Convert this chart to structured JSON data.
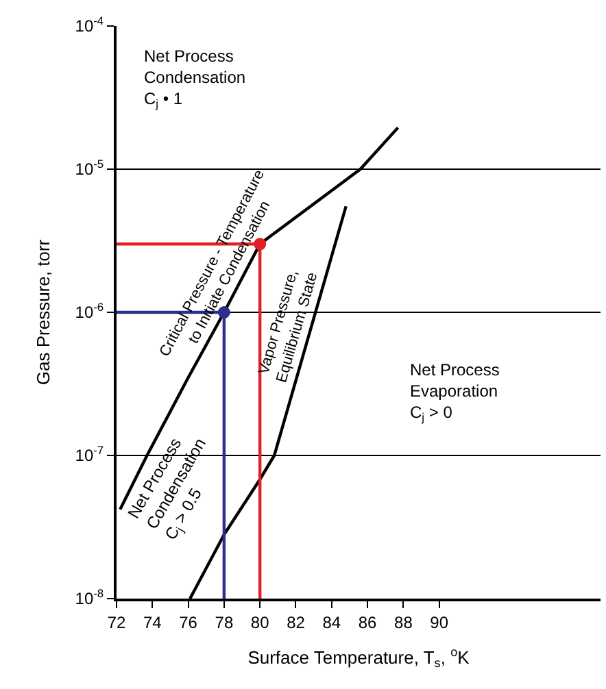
{
  "chart_data": {
    "type": "line",
    "xlabel": "Surface Temperature, T$_{s}$, $^{o}$K",
    "ylabel": "Gas Pressure, torr",
    "log": "y",
    "grid": "y",
    "legend": false,
    "marker": "none",
    "line_style": "solid",
    "xlim": [
      72,
      99
    ],
    "xticks": [
      72,
      74,
      76,
      78,
      80,
      82,
      84,
      86,
      88,
      90
    ],
    "ylim": [
      1e-08,
      0.0001
    ],
    "yticks": [
      {
        "value": 1e-08,
        "label": "10$^{-8}$"
      },
      {
        "value": 1e-07,
        "label": "10$^{-7}$"
      },
      {
        "value": 1e-06,
        "label": "10$^{-6}$"
      },
      {
        "value": 1e-05,
        "label": "10$^{-5}$"
      },
      {
        "value": 0.0001,
        "label": "10$^{-4}$"
      }
    ],
    "series": [
      {
        "name": "Critical Pressure - Temperature\nto Initiate Condensation",
        "color": "#000000",
        "x": [
          72.2,
          73.7,
          76,
          78,
          80,
          85.6,
          87.7
        ],
        "values": [
          4.2e-08,
          1e-07,
          3.5e-07,
          1e-06,
          3e-06,
          1e-05,
          1.95e-05
        ]
      },
      {
        "name": "Vapor Pressure,\nEquilibrium State",
        "color": "#000000",
        "x": [
          76.1,
          78,
          80,
          80.8,
          84.8
        ],
        "values": [
          1e-08,
          2.8e-08,
          6.8e-08,
          1e-07,
          5.5e-06
        ]
      },
      {
        "color": "#e41e25",
        "x": [
          72,
          80,
          80
        ],
        "values": [
          3e-06,
          3e-06,
          1e-08
        ]
      },
      {
        "color": "#2a2e8c",
        "x": [
          72,
          78,
          78
        ],
        "values": [
          1e-06,
          1e-06,
          1e-08
        ]
      },
      {
        "type": "scatter",
        "marker": "circle",
        "colors": [
          "#e41e25",
          "#2a2e8c"
        ],
        "x": [
          80,
          78
        ],
        "values": [
          3e-06,
          1e-06
        ]
      }
    ],
    "annotations": [
      "Net Process\nCondensation\nC$_{j}$ • 1",
      "Net Process\nCondensation\nC$_{j}$ > 0.5",
      "Net Process\nEvaporation\nC$_{j}$ > 0"
    ]
  }
}
